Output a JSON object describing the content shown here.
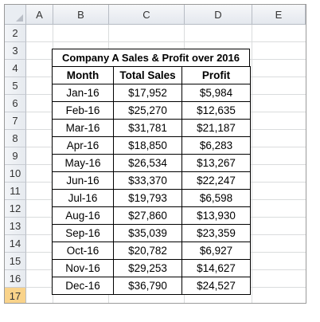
{
  "columns": [
    "A",
    "B",
    "C",
    "D",
    "E"
  ],
  "rows": [
    "2",
    "3",
    "4",
    "5",
    "6",
    "7",
    "8",
    "9",
    "10",
    "11",
    "12",
    "13",
    "14",
    "15",
    "16",
    "17"
  ],
  "active_row": "17",
  "table": {
    "title": "Company A Sales & Profit over 2016",
    "headers": [
      "Month",
      "Total Sales",
      "Profit"
    ],
    "rows": [
      [
        "Jan-16",
        "$17,952",
        "$5,984"
      ],
      [
        "Feb-16",
        "$25,270",
        "$12,635"
      ],
      [
        "Mar-16",
        "$31,781",
        "$21,187"
      ],
      [
        "Apr-16",
        "$18,850",
        "$6,283"
      ],
      [
        "May-16",
        "$26,534",
        "$13,267"
      ],
      [
        "Jun-16",
        "$33,370",
        "$22,247"
      ],
      [
        "Jul-16",
        "$19,793",
        "$6,598"
      ],
      [
        "Aug-16",
        "$27,860",
        "$13,930"
      ],
      [
        "Sep-16",
        "$35,039",
        "$23,359"
      ],
      [
        "Oct-16",
        "$20,782",
        "$6,927"
      ],
      [
        "Nov-16",
        "$29,253",
        "$14,627"
      ],
      [
        "Dec-16",
        "$36,790",
        "$24,527"
      ]
    ]
  }
}
